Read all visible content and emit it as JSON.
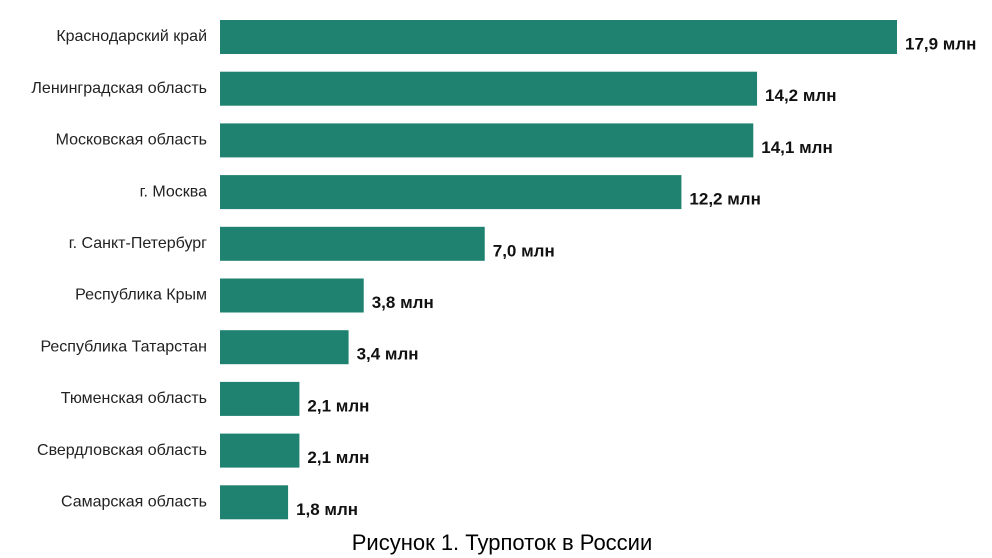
{
  "chart_data": {
    "type": "bar",
    "orientation": "horizontal",
    "title": "Рисунок 1. Турпоток в России",
    "categories": [
      "Краснодарский край",
      "Ленинградская область",
      "Московская область",
      "г. Москва",
      "г. Санкт-Петербург",
      "Республика Крым",
      "Республика Татарстан",
      "Тюменская область",
      "Свердловская область",
      "Самарская область"
    ],
    "values": [
      17.9,
      14.2,
      14.1,
      12.2,
      7.0,
      3.8,
      3.4,
      2.1,
      2.1,
      1.8
    ],
    "value_labels": [
      "17,9 млн",
      "14,2 млн",
      "14,1 млн",
      "12,2 млн",
      "7,0 млн",
      "3,8 млн",
      "3,4 млн",
      "2,1 млн",
      "2,1 млн",
      "1,8 млн"
    ],
    "color": "#1f8270"
  }
}
